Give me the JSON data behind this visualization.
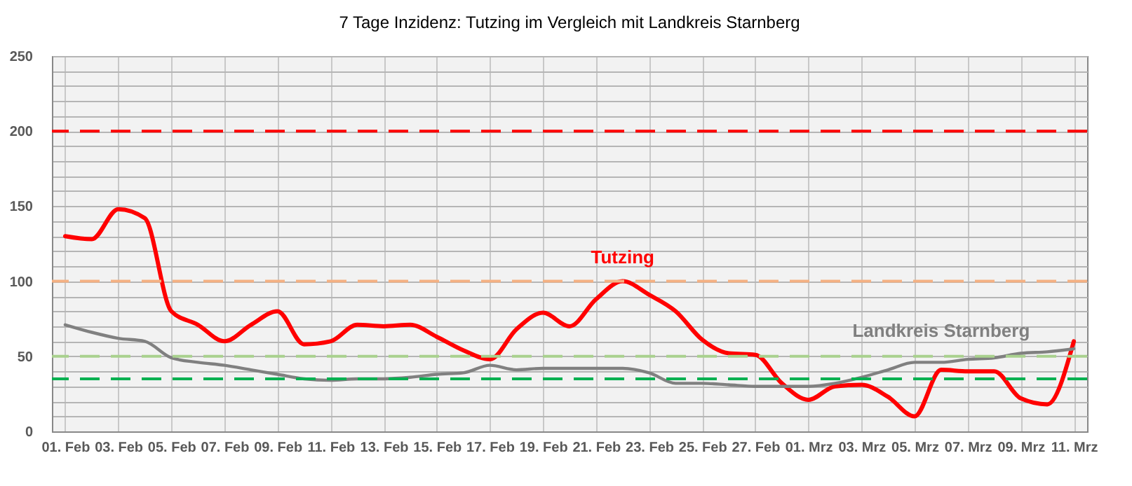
{
  "chart_data": {
    "type": "line",
    "title": "7 Tage Inzidenz: Tutzing im Vergleich mit Landkreis Starnberg",
    "categories": [
      "01. Feb",
      null,
      "03. Feb",
      null,
      "05. Feb",
      null,
      "07. Feb",
      null,
      "09. Feb",
      null,
      "11. Feb",
      null,
      "13. Feb",
      null,
      "15. Feb",
      null,
      "17. Feb",
      null,
      "19. Feb",
      null,
      "21. Feb",
      null,
      "23. Feb",
      null,
      "25. Feb",
      null,
      "27. Feb",
      null,
      "01. Mrz",
      null,
      "03. Mrz",
      null,
      "05. Mrz",
      null,
      "07. Mrz",
      null,
      "09. Mrz",
      null,
      "11. Mrz"
    ],
    "series": [
      {
        "name": "Tutzing",
        "color": "#ff0000",
        "values": [
          130,
          128,
          148,
          142,
          80,
          71,
          60,
          71,
          80,
          58,
          60,
          71,
          70,
          71,
          63,
          54,
          48,
          68,
          79,
          70,
          88,
          100,
          91,
          80,
          61,
          52,
          51,
          32,
          21,
          30,
          31,
          23,
          10,
          41,
          40,
          40,
          22,
          18,
          60
        ]
      },
      {
        "name": "Landkreis Starnberg",
        "color": "#808080",
        "values": [
          71,
          66,
          62,
          60,
          49,
          46,
          44,
          41,
          38,
          35,
          34,
          35,
          35,
          36,
          38,
          39,
          44,
          41,
          42,
          42,
          42,
          42,
          39,
          32,
          32,
          31,
          30,
          30,
          30,
          32,
          36,
          41,
          46,
          46,
          48,
          49,
          52,
          53,
          55
        ]
      }
    ],
    "ylim": [
      0,
      250
    ],
    "yticks": [
      0,
      {
        "value": 10,
        "label": null
      },
      {
        "value": 20,
        "label": null
      },
      {
        "value": 30,
        "label": null
      },
      {
        "value": 40,
        "label": null
      },
      50,
      {
        "value": 60,
        "label": null
      },
      {
        "value": 70,
        "label": null
      },
      {
        "value": 80,
        "label": null
      },
      {
        "value": 90,
        "label": null
      },
      100,
      {
        "value": 110,
        "label": null
      },
      {
        "value": 120,
        "label": null
      },
      {
        "value": 130,
        "label": null
      },
      {
        "value": 140,
        "label": null
      },
      150,
      {
        "value": 160,
        "label": null
      },
      {
        "value": 170,
        "label": null
      },
      {
        "value": 180,
        "label": null
      },
      {
        "value": 190,
        "label": null
      },
      200,
      {
        "value": 210,
        "label": null
      },
      {
        "value": 220,
        "label": null
      },
      {
        "value": 230,
        "label": null
      },
      {
        "value": 240,
        "label": null
      },
      250
    ],
    "ref_lines": [
      {
        "axis": "y",
        "value": 200,
        "color": "#ff0000",
        "line_style": "dashed"
      },
      {
        "axis": "y",
        "value": 100,
        "color": "#f4b183",
        "line_style": "dashed"
      },
      {
        "axis": "y",
        "value": 50,
        "color": "#a9d18e",
        "line_style": "dashed"
      },
      {
        "axis": "y",
        "value": 35,
        "color": "#00b050",
        "line_style": "dashed"
      }
    ],
    "grid": true,
    "marker": "none",
    "line_style": "solid"
  }
}
